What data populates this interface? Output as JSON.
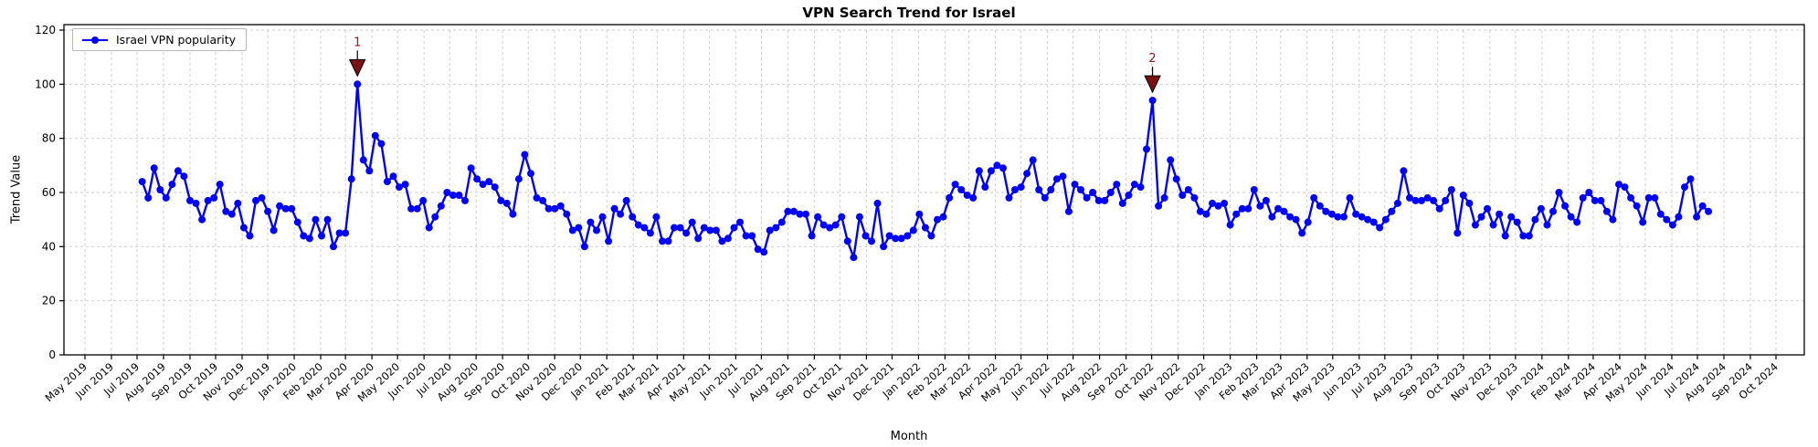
{
  "chart_data": {
    "type": "line",
    "title": "VPN Search Trend for Israel",
    "xlabel": "Month",
    "ylabel": "Trend Value",
    "legend_position": "upper left",
    "grid": true,
    "colors": {
      "line": "#0000ff",
      "marker": "#0000ff",
      "annotation": "#8b1a1a",
      "grid": "#c9c9c9",
      "axis": "#000000"
    },
    "x_axis": {
      "label": "Month",
      "tick_labels": [
        "May 2019",
        "Jun 2019",
        "Jul 2019",
        "Aug 2019",
        "Sep 2019",
        "Oct 2019",
        "Nov 2019",
        "Dec 2019",
        "Jan 2020",
        "Feb 2020",
        "Mar 2020",
        "Apr 2020",
        "May 2020",
        "Jun 2020",
        "Jul 2020",
        "Aug 2020",
        "Sep 2020",
        "Oct 2020",
        "Nov 2020",
        "Dec 2020",
        "Jan 2021",
        "Feb 2021",
        "Mar 2021",
        "Apr 2021",
        "May 2021",
        "Jun 2021",
        "Jul 2021",
        "Aug 2021",
        "Sep 2021",
        "Oct 2021",
        "Nov 2021",
        "Dec 2021",
        "Jan 2022",
        "Feb 2022",
        "Mar 2022",
        "Apr 2022",
        "May 2022",
        "Jun 2022",
        "Jul 2022",
        "Aug 2022",
        "Sep 2022",
        "Oct 2022",
        "Nov 2022",
        "Dec 2022",
        "Jan 2023",
        "Feb 2023",
        "Mar 2023",
        "Apr 2023",
        "May 2023",
        "Jun 2023",
        "Jul 2023",
        "Aug 2023",
        "Sep 2023",
        "Oct 2023",
        "Nov 2023",
        "Dec 2023",
        "Jan 2024",
        "Feb 2024",
        "Mar 2024",
        "Apr 2024",
        "May 2024",
        "Jun 2024",
        "Jul 2024",
        "Aug 2024",
        "Sep 2024",
        "Oct 2024"
      ],
      "tick_rotation": 45
    },
    "y_axis": {
      "label": "Trend Value",
      "ticks": [
        0,
        20,
        40,
        60,
        80,
        100,
        120
      ],
      "range": [
        0,
        120
      ]
    },
    "series": [
      {
        "name": "Israel VPN popularity",
        "frequency": "weekly",
        "start_date": "2019-07-07",
        "end_date": "2024-07-14",
        "values": [
          64,
          58,
          69,
          61,
          58,
          63,
          68,
          66,
          57,
          56,
          50,
          57,
          58,
          63,
          53,
          52,
          56,
          47,
          44,
          57,
          58,
          53,
          46,
          55,
          54,
          54,
          49,
          44,
          43,
          50,
          44,
          50,
          40,
          45,
          45,
          65,
          100,
          72,
          68,
          81,
          78,
          64,
          66,
          62,
          63,
          54,
          54,
          57,
          47,
          51,
          55,
          60,
          59,
          59,
          57,
          69,
          65,
          63,
          64,
          62,
          57,
          56,
          52,
          65,
          74,
          67,
          58,
          57,
          54,
          54,
          55,
          52,
          46,
          47,
          40,
          49,
          46,
          51,
          42,
          54,
          52,
          57,
          51,
          48,
          47,
          45,
          51,
          42,
          42,
          47,
          47,
          45,
          49,
          43,
          47,
          46,
          46,
          42,
          43,
          47,
          49,
          44,
          44,
          39,
          38,
          46,
          47,
          49,
          53,
          53,
          52,
          52,
          44,
          51,
          48,
          47,
          48,
          51,
          42,
          36,
          51,
          44,
          42,
          56,
          40,
          44,
          43,
          43,
          44,
          46,
          52,
          47,
          44,
          50,
          51,
          58,
          63,
          61,
          59,
          58,
          68,
          62,
          68,
          70,
          69,
          58,
          61,
          62,
          67,
          72,
          61,
          58,
          61,
          65,
          66,
          53,
          63,
          61,
          58,
          60,
          57,
          57,
          60,
          63,
          56,
          59,
          63,
          62,
          76,
          94,
          55,
          58,
          72,
          65,
          59,
          61,
          58,
          53,
          52,
          56,
          55,
          56,
          48,
          52,
          54,
          54,
          61,
          55,
          57,
          51,
          54,
          53,
          51,
          50,
          45,
          49,
          58,
          55,
          53,
          52,
          51,
          51,
          58,
          52,
          51,
          50,
          49,
          47,
          50,
          53,
          56,
          68,
          58,
          57,
          57,
          58,
          57,
          54,
          57,
          61,
          45,
          59,
          56,
          48,
          51,
          54,
          48,
          52,
          44,
          51,
          49,
          44,
          44,
          50,
          54,
          48,
          53,
          60,
          55,
          51,
          49,
          58,
          60,
          57,
          57,
          53,
          50,
          63,
          62,
          58,
          55,
          49,
          58,
          58,
          52,
          50,
          48,
          51,
          62,
          65,
          51,
          55,
          53
        ]
      }
    ],
    "annotations": [
      {
        "label": "1",
        "week_index": 36,
        "date": "2020-03-15",
        "value": 100
      },
      {
        "label": "2",
        "week_index": 169,
        "date": "2022-10-02",
        "value": 94
      }
    ]
  }
}
